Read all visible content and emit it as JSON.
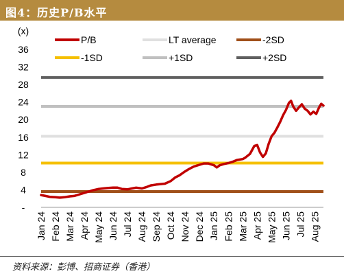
{
  "title": "图4：历史P/B水平",
  "source": "资料来源：彭博、招商证券（香港）",
  "chart_data": {
    "type": "line",
    "yunit_label": "(x)",
    "ylim": [
      0,
      36
    ],
    "yticks": [
      "-",
      "4",
      "8",
      "12",
      "16",
      "20",
      "24",
      "28",
      "32",
      "36"
    ],
    "categories": [
      "Jan 24",
      "Feb 24",
      "Mar 24",
      "Apr 24",
      "May 24",
      "Jun 24",
      "Jul 24",
      "Aug 24",
      "Sep 24",
      "Oct 24",
      "Nov 24",
      "Dec 24",
      "Jan 25",
      "Feb 25",
      "Mar 25",
      "Apr 25",
      "May 25",
      "Jun 25",
      "Jul 25",
      "Aug 25"
    ],
    "x_range": [
      0,
      19.6
    ],
    "legend_position": "top",
    "grid": false,
    "series": [
      {
        "name": "P/B",
        "color": "#c00000",
        "kind": "line",
        "points": [
          [
            0,
            2.8
          ],
          [
            0.3,
            2.6
          ],
          [
            0.6,
            2.4
          ],
          [
            1,
            2.3
          ],
          [
            1.3,
            2.2
          ],
          [
            1.6,
            2.3
          ],
          [
            2,
            2.5
          ],
          [
            2.3,
            2.6
          ],
          [
            2.6,
            2.9
          ],
          [
            3,
            3.3
          ],
          [
            3.3,
            3.6
          ],
          [
            3.6,
            3.9
          ],
          [
            4,
            4.2
          ],
          [
            4.3,
            4.3
          ],
          [
            4.6,
            4.4
          ],
          [
            5,
            4.5
          ],
          [
            5.3,
            4.5
          ],
          [
            5.6,
            4.2
          ],
          [
            6,
            4.1
          ],
          [
            6.3,
            4.3
          ],
          [
            6.6,
            4.5
          ],
          [
            7,
            4.3
          ],
          [
            7.3,
            4.6
          ],
          [
            7.6,
            5.0
          ],
          [
            8,
            5.2
          ],
          [
            8.3,
            5.3
          ],
          [
            8.6,
            5.4
          ],
          [
            9,
            6.0
          ],
          [
            9.3,
            6.8
          ],
          [
            9.6,
            7.3
          ],
          [
            10,
            8.2
          ],
          [
            10.3,
            8.8
          ],
          [
            10.6,
            9.3
          ],
          [
            11,
            9.7
          ],
          [
            11.3,
            10.0
          ],
          [
            11.6,
            10.0
          ],
          [
            12,
            9.6
          ],
          [
            12.2,
            9.1
          ],
          [
            12.4,
            9.6
          ],
          [
            12.7,
            9.9
          ],
          [
            13,
            10.1
          ],
          [
            13.3,
            10.4
          ],
          [
            13.6,
            10.8
          ],
          [
            14,
            11.0
          ],
          [
            14.2,
            11.4
          ],
          [
            14.5,
            12.2
          ],
          [
            14.8,
            14.0
          ],
          [
            15,
            14.2
          ],
          [
            15.2,
            12.5
          ],
          [
            15.4,
            11.5
          ],
          [
            15.6,
            12.3
          ],
          [
            15.8,
            14.5
          ],
          [
            16,
            16.2
          ],
          [
            16.2,
            17.0
          ],
          [
            16.4,
            18.2
          ],
          [
            16.6,
            19.5
          ],
          [
            16.8,
            21.0
          ],
          [
            17,
            22.2
          ],
          [
            17.2,
            23.8
          ],
          [
            17.35,
            24.3
          ],
          [
            17.5,
            23.0
          ],
          [
            17.7,
            22.0
          ],
          [
            17.9,
            22.8
          ],
          [
            18.1,
            23.5
          ],
          [
            18.3,
            22.5
          ],
          [
            18.5,
            22.0
          ],
          [
            18.7,
            21.2
          ],
          [
            18.9,
            21.8
          ],
          [
            19.1,
            21.3
          ],
          [
            19.3,
            22.8
          ],
          [
            19.45,
            23.6
          ],
          [
            19.6,
            23.2
          ]
        ]
      },
      {
        "name": "LT average",
        "color": "#e0e0e0",
        "kind": "hline",
        "value": 16.2
      },
      {
        "name": "-2SD",
        "color": "#a0501a",
        "kind": "hline",
        "value": 3.6
      },
      {
        "name": "-1SD",
        "color": "#f5c000",
        "kind": "hline",
        "value": 10.1
      },
      {
        "name": "+1SD",
        "color": "#c0c0c0",
        "kind": "hline",
        "value": 23.0
      },
      {
        "name": "+2SD",
        "color": "#606060",
        "kind": "hline",
        "value": 29.6
      }
    ]
  }
}
